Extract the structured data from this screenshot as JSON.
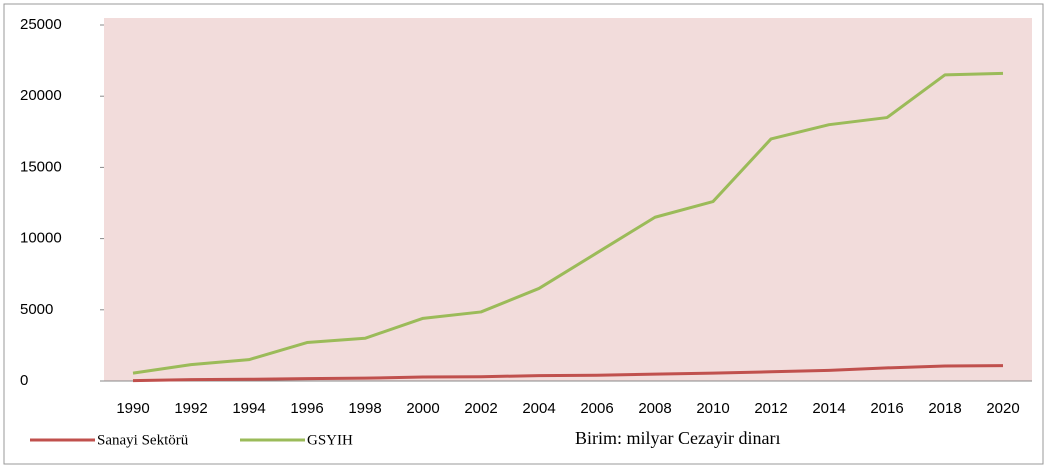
{
  "chart_data": {
    "type": "line",
    "categories": [
      "1990",
      "1992",
      "1994",
      "1996",
      "1998",
      "2000",
      "2002",
      "2004",
      "2006",
      "2008",
      "2010",
      "2012",
      "2014",
      "2016",
      "2018",
      "2020"
    ],
    "series": [
      {
        "name": "Sanayi Sektörü",
        "color": "#c0504d",
        "values": [
          30,
          100,
          120,
          170,
          200,
          280,
          300,
          380,
          400,
          480,
          550,
          650,
          750,
          920,
          1050,
          1080
        ]
      },
      {
        "name": "GSYIH",
        "color": "#9bbb59",
        "values": [
          550,
          1150,
          1500,
          2700,
          3000,
          4400,
          4850,
          6500,
          9000,
          11500,
          12600,
          17000,
          18000,
          18500,
          21500,
          21600
        ]
      }
    ],
    "ylim": [
      0,
      25000
    ],
    "yticks": [
      0,
      5000,
      10000,
      15000,
      20000,
      25000
    ],
    "annotation": "Birim: milyar Cezayir dinarı",
    "plot_background": "#f2dcdb",
    "legend": "bottom"
  }
}
